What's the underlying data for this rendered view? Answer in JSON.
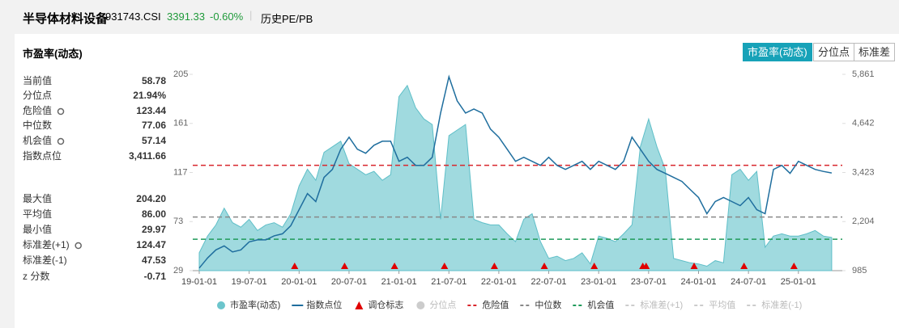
{
  "header": {
    "title": "半导体材料设备",
    "code": "931743.CSI",
    "price": "3391.33",
    "change": "-0.60%",
    "tab": "历史PE/PB"
  },
  "panel": {
    "title": "市盈率(动态)",
    "buttons": [
      "市盈率(动态)",
      "分位点",
      "标准差"
    ]
  },
  "stats": [
    [
      {
        "label": "当前值",
        "value": "58.78"
      },
      {
        "label": "分位点",
        "value": "21.94%"
      },
      {
        "label": "危险值",
        "value": "123.44"
      },
      {
        "label": "中位数",
        "value": "77.06"
      },
      {
        "label": "机会值",
        "value": "57.14"
      },
      {
        "label": "指数点位",
        "value": "3,411.66"
      }
    ],
    [
      {
        "label": "最大值",
        "value": "204.20"
      },
      {
        "label": "平均值",
        "value": "86.00"
      },
      {
        "label": "最小值",
        "value": "29.97"
      },
      {
        "label": "标准差(+1)",
        "value": "124.47"
      },
      {
        "label": "标准差(-1)",
        "value": "47.53"
      },
      {
        "label": "z 分数",
        "value": "-0.71"
      }
    ]
  ],
  "chart_data": {
    "type": "area-line",
    "x": [
      "19-01-01",
      "19-02-01",
      "19-03-01",
      "19-04-01",
      "19-05-01",
      "19-06-01",
      "19-07-01",
      "19-08-01",
      "19-09-01",
      "19-10-01",
      "19-11-01",
      "19-12-01",
      "20-01-01",
      "20-02-01",
      "20-03-01",
      "20-04-01",
      "20-05-01",
      "20-06-01",
      "20-07-01",
      "20-08-01",
      "20-09-01",
      "20-10-01",
      "20-11-01",
      "20-12-01",
      "21-01-01",
      "21-02-01",
      "21-03-01",
      "21-04-01",
      "21-05-01",
      "21-06-01",
      "21-07-01",
      "21-08-01",
      "21-09-01",
      "21-10-01",
      "21-11-01",
      "21-12-01",
      "22-01-01",
      "22-02-01",
      "22-03-01",
      "22-04-01",
      "22-05-01",
      "22-06-01",
      "22-07-01",
      "22-08-01",
      "22-09-01",
      "22-10-01",
      "22-11-01",
      "22-12-01",
      "23-01-01",
      "23-02-01",
      "23-03-01",
      "23-04-01",
      "23-05-01",
      "23-06-01",
      "23-07-01",
      "23-08-01",
      "23-09-01",
      "23-10-01",
      "23-11-01",
      "23-12-01",
      "24-01-01",
      "24-02-01",
      "24-03-01",
      "24-04-01",
      "24-05-01",
      "24-06-01",
      "24-07-01",
      "24-08-01",
      "24-09-01",
      "24-10-01",
      "24-11-01",
      "24-12-01",
      "25-01-01",
      "25-02-01",
      "25-03-01",
      "25-04-01",
      "25-05-01"
    ],
    "series": [
      {
        "name": "市盈率(动态)",
        "color": "#8fd3d9",
        "stroke": "#5fbfc8",
        "kind": "area",
        "values": [
          45,
          60,
          70,
          85,
          72,
          68,
          75,
          65,
          70,
          72,
          68,
          80,
          105,
          120,
          110,
          135,
          140,
          145,
          125,
          120,
          115,
          118,
          110,
          115,
          185,
          195,
          175,
          165,
          160,
          75,
          150,
          155,
          160,
          75,
          72,
          70,
          70,
          62,
          55,
          75,
          80,
          55,
          40,
          42,
          38,
          40,
          45,
          35,
          60,
          58,
          55,
          62,
          70,
          140,
          165,
          140,
          120,
          40,
          38,
          36,
          35,
          33,
          38,
          36,
          115,
          120,
          110,
          118,
          50,
          60,
          62,
          60,
          60,
          62,
          65,
          60,
          58.78
        ]
      },
      {
        "name": "指数点位",
        "color": "#1f6e9e",
        "kind": "line",
        "axis": "y2",
        "values": [
          1050,
          1300,
          1500,
          1600,
          1450,
          1500,
          1700,
          1750,
          1750,
          1850,
          1900,
          2100,
          2500,
          2900,
          2700,
          3300,
          3500,
          4000,
          4300,
          4000,
          3900,
          4100,
          4200,
          4200,
          3700,
          3800,
          3600,
          3600,
          3800,
          4900,
          5800,
          5200,
          4900,
          5000,
          4900,
          4500,
          4300,
          4000,
          3700,
          3800,
          3700,
          3600,
          3800,
          3600,
          3500,
          3600,
          3700,
          3500,
          3700,
          3600,
          3500,
          3700,
          4300,
          4000,
          3700,
          3500,
          3400,
          3300,
          3200,
          3000,
          2800,
          2400,
          2700,
          2800,
          2700,
          2600,
          2800,
          2500,
          2400,
          3500,
          3600,
          3400,
          3700,
          3600,
          3500,
          3450,
          3411.66
        ]
      }
    ],
    "markers": {
      "name": "调仓标志",
      "color": "#e00000",
      "x": [
        "19-12-15",
        "20-06-15",
        "20-12-15",
        "21-06-15",
        "21-12-15",
        "22-06-15",
        "22-12-15",
        "23-06-10",
        "23-06-22",
        "23-12-15",
        "24-06-15",
        "24-12-15"
      ]
    },
    "reference_lines": [
      {
        "name": "危险值",
        "value": 123.44,
        "color": "#d9262c"
      },
      {
        "name": "中位数",
        "value": 77.06,
        "color": "#888888"
      },
      {
        "name": "机会值",
        "value": 57.14,
        "color": "#1f9a5a"
      }
    ],
    "ylim": [
      29,
      205
    ],
    "yticks": [
      29,
      73,
      117,
      161,
      205
    ],
    "y2lim": [
      985,
      5861
    ],
    "y2ticks": [
      985,
      {
        "value": 2204,
        "label": "2,204"
      },
      {
        "value": 3423,
        "label": "3,423"
      },
      {
        "value": 4642,
        "label": "4,642"
      },
      {
        "value": 5861,
        "label": "5,861"
      }
    ],
    "xticks": [
      "19-01-01",
      "19-07-01",
      "20-01-01",
      "20-07-01",
      "21-01-01",
      "21-07-01",
      "22-01-01",
      "22-07-01",
      "23-01-01",
      "23-07-01",
      "24-01-01",
      "24-07-01",
      "25-01-01"
    ],
    "legend": [
      {
        "name": "市盈率(动态)",
        "color": "#6cc5cc",
        "style": "dot"
      },
      {
        "name": "指数点位",
        "color": "#1f6e9e",
        "style": "line"
      },
      {
        "name": "调仓标志",
        "color": "#e00000",
        "style": "triangle"
      },
      {
        "name": "分位点",
        "color": "#cccccc",
        "style": "dot",
        "off": true
      },
      {
        "name": "危险值",
        "color": "#d9262c",
        "style": "dash"
      },
      {
        "name": "中位数",
        "color": "#888888",
        "style": "dash"
      },
      {
        "name": "机会值",
        "color": "#1f9a5a",
        "style": "dash"
      },
      {
        "name": "标准差(+1)",
        "color": "#cccccc",
        "style": "dash",
        "off": true
      },
      {
        "name": "平均值",
        "color": "#cccccc",
        "style": "dash",
        "off": true
      },
      {
        "name": "标准差(-1)",
        "color": "#cccccc",
        "style": "dash",
        "off": true
      }
    ]
  }
}
